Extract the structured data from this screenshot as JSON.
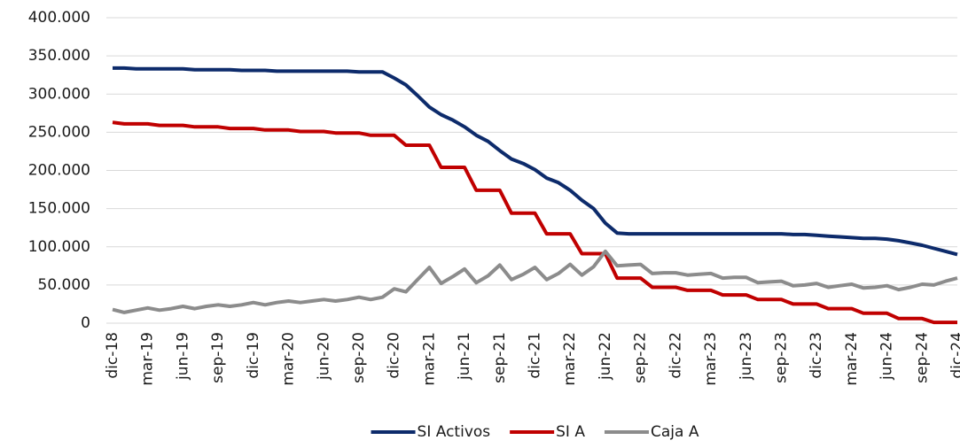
{
  "chart_data": {
    "type": "line",
    "categories": [
      "dic-18",
      null,
      null,
      "mar-19",
      null,
      null,
      "jun-19",
      null,
      null,
      "sep-19",
      null,
      null,
      "dic-19",
      null,
      null,
      "mar-20",
      null,
      null,
      "jun-20",
      null,
      null,
      "sep-20",
      null,
      null,
      "dic-20",
      null,
      null,
      "mar-21",
      null,
      null,
      "jun-21",
      null,
      null,
      "sep-21",
      null,
      null,
      "dic-21",
      null,
      null,
      "mar-22",
      null,
      null,
      "jun-22",
      null,
      null,
      "sep-22",
      null,
      null,
      "dic-22",
      null,
      null,
      "mar-23",
      null,
      null,
      "jun-23",
      null,
      null,
      "sep-23",
      null,
      null,
      "dic-23",
      null,
      null,
      "mar-24",
      null,
      null,
      "jun-24",
      null,
      null,
      "sep-24",
      null,
      null,
      "dic-24"
    ],
    "series": [
      {
        "name": "SI Activos",
        "color": "#0d2b6b",
        "values": [
          334000,
          334000,
          333000,
          333000,
          333000,
          333000,
          333000,
          332000,
          332000,
          332000,
          332000,
          331000,
          331000,
          331000,
          330000,
          330000,
          330000,
          330000,
          330000,
          330000,
          330000,
          329000,
          329000,
          329000,
          321000,
          312000,
          298000,
          283000,
          273000,
          266000,
          257000,
          246000,
          238000,
          226000,
          215000,
          209000,
          201000,
          190000,
          184000,
          174000,
          161000,
          150000,
          131000,
          118000,
          117000,
          117000,
          117000,
          117000,
          117000,
          117000,
          117000,
          117000,
          117000,
          117000,
          117000,
          117000,
          117000,
          117000,
          116000,
          116000,
          115000,
          114000,
          113000,
          112000,
          111000,
          111000,
          110000,
          108000,
          105000,
          102000,
          98000,
          94000,
          90000
        ]
      },
      {
        "name": "SI A",
        "color": "#c00000",
        "values": [
          263000,
          261000,
          261000,
          261000,
          259000,
          259000,
          259000,
          257000,
          257000,
          257000,
          255000,
          255000,
          255000,
          253000,
          253000,
          253000,
          251000,
          251000,
          251000,
          249000,
          249000,
          249000,
          246000,
          246000,
          246000,
          233000,
          233000,
          233000,
          204000,
          204000,
          204000,
          174000,
          174000,
          174000,
          144000,
          144000,
          144000,
          117000,
          117000,
          117000,
          91000,
          91000,
          91000,
          59000,
          59000,
          59000,
          47000,
          47000,
          47000,
          43000,
          43000,
          43000,
          37000,
          37000,
          37000,
          31000,
          31000,
          31000,
          25000,
          25000,
          25000,
          19000,
          19000,
          19000,
          13000,
          13000,
          13000,
          6000,
          6000,
          6000,
          1000,
          1000,
          1000
        ]
      },
      {
        "name": "Caja A",
        "color": "#8c8c8c",
        "values": [
          18000,
          14000,
          17000,
          20000,
          17000,
          19000,
          22000,
          19000,
          22000,
          24000,
          22000,
          24000,
          27000,
          24000,
          27000,
          29000,
          27000,
          29000,
          31000,
          29000,
          31000,
          34000,
          31000,
          34000,
          45000,
          41000,
          57000,
          73000,
          52000,
          61000,
          71000,
          53000,
          62000,
          76000,
          57000,
          64000,
          73000,
          57000,
          65000,
          77000,
          63000,
          74000,
          94000,
          75000,
          76000,
          77000,
          65000,
          66000,
          66000,
          63000,
          64000,
          65000,
          59000,
          60000,
          60000,
          53000,
          54000,
          55000,
          49000,
          50000,
          52000,
          47000,
          49000,
          51000,
          46000,
          47000,
          49000,
          44000,
          47000,
          51000,
          50000,
          55000,
          59000
        ]
      }
    ],
    "ylim": [
      0,
      400000
    ],
    "yticks": [
      0,
      {
        "value": 50000,
        "label": "50.000"
      },
      {
        "value": 100000,
        "label": "100.000"
      },
      {
        "value": 150000,
        "label": "150.000"
      },
      {
        "value": 200000,
        "label": "200.000"
      },
      {
        "value": 250000,
        "label": "250.000"
      },
      {
        "value": 300000,
        "label": "300.000"
      },
      {
        "value": 350000,
        "label": "350.000"
      },
      {
        "value": 400000,
        "label": "400.000"
      }
    ],
    "grid": true,
    "legend": "bottom"
  }
}
